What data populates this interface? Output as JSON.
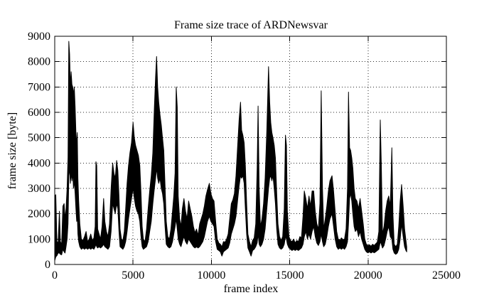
{
  "window": {
    "background": "#ffffff"
  },
  "chart_data": {
    "type": "line",
    "title": "Frame size trace of ARDNewsvar",
    "xlabel": "frame index",
    "ylabel": "frame size [byte]",
    "xlim": [
      0,
      25000
    ],
    "ylim": [
      0,
      9000
    ],
    "x_ticks": [
      0,
      5000,
      10000,
      15000,
      20000,
      25000
    ],
    "y_ticks": [
      0,
      1000,
      2000,
      3000,
      4000,
      5000,
      6000,
      7000,
      8000,
      9000
    ],
    "grid": "dotted",
    "legend": "none",
    "line_color": "#000000",
    "grid_color": "#2a2a2a",
    "border_color": "#000000",
    "series_name": "frame size trace of ARDNewsvar",
    "envelope_format": "[frame_index, min_frame_size_byte, max_frame_size_byte]",
    "envelope": [
      [
        0,
        150,
        2700
      ],
      [
        70,
        300,
        2750
      ],
      [
        140,
        350,
        900
      ],
      [
        220,
        450,
        850
      ],
      [
        300,
        450,
        2100
      ],
      [
        360,
        400,
        900
      ],
      [
        440,
        380,
        800
      ],
      [
        520,
        600,
        2300
      ],
      [
        600,
        500,
        2400
      ],
      [
        660,
        450,
        1800
      ],
      [
        720,
        700,
        2200
      ],
      [
        790,
        1000,
        3000
      ],
      [
        850,
        1600,
        4200
      ],
      [
        900,
        3500,
        8800
      ],
      [
        950,
        3800,
        8300
      ],
      [
        1000,
        3200,
        7000
      ],
      [
        1050,
        3600,
        7600
      ],
      [
        1100,
        3300,
        7100
      ],
      [
        1150,
        3600,
        7000
      ],
      [
        1200,
        3000,
        6700
      ],
      [
        1250,
        3300,
        7000
      ],
      [
        1300,
        2800,
        6200
      ],
      [
        1350,
        2200,
        5200
      ],
      [
        1400,
        1700,
        4700
      ],
      [
        1440,
        2000,
        5200
      ],
      [
        1480,
        1200,
        3400
      ],
      [
        1530,
        900,
        2500
      ],
      [
        1600,
        700,
        1600
      ],
      [
        1700,
        600,
        1000
      ],
      [
        1800,
        650,
        950
      ],
      [
        1900,
        600,
        1100
      ],
      [
        2000,
        650,
        1300
      ],
      [
        2100,
        600,
        900
      ],
      [
        2200,
        650,
        1000
      ],
      [
        2300,
        600,
        1200
      ],
      [
        2400,
        650,
        950
      ],
      [
        2500,
        600,
        1050
      ],
      [
        2580,
        700,
        1500
      ],
      [
        2630,
        800,
        4050
      ],
      [
        2680,
        700,
        3900
      ],
      [
        2740,
        650,
        1400
      ],
      [
        2830,
        700,
        1200
      ],
      [
        2920,
        650,
        1000
      ],
      [
        3020,
        700,
        1500
      ],
      [
        3120,
        800,
        2600
      ],
      [
        3200,
        700,
        1700
      ],
      [
        3300,
        650,
        1300
      ],
      [
        3400,
        600,
        1100
      ],
      [
        3500,
        700,
        1600
      ],
      [
        3600,
        1300,
        3000
      ],
      [
        3700,
        2400,
        4000
      ],
      [
        3780,
        2200,
        3600
      ],
      [
        3860,
        2000,
        3400
      ],
      [
        3950,
        2400,
        4100
      ],
      [
        4030,
        2200,
        3700
      ],
      [
        4100,
        1300,
        2700
      ],
      [
        4170,
        700,
        1400
      ],
      [
        4260,
        650,
        1000
      ],
      [
        4350,
        600,
        950
      ],
      [
        4440,
        700,
        1300
      ],
      [
        4530,
        900,
        2200
      ],
      [
        4620,
        1300,
        3200
      ],
      [
        4710,
        1800,
        3900
      ],
      [
        4800,
        2200,
        4400
      ],
      [
        4900,
        2600,
        4800
      ],
      [
        5000,
        3000,
        5600
      ],
      [
        5080,
        2600,
        5000
      ],
      [
        5160,
        2300,
        4700
      ],
      [
        5250,
        2100,
        4500
      ],
      [
        5340,
        2000,
        4300
      ],
      [
        5430,
        1700,
        3900
      ],
      [
        5510,
        1100,
        2800
      ],
      [
        5580,
        700,
        1500
      ],
      [
        5660,
        600,
        1000
      ],
      [
        5760,
        650,
        900
      ],
      [
        5860,
        700,
        1400
      ],
      [
        5960,
        900,
        2200
      ],
      [
        6060,
        1300,
        2900
      ],
      [
        6160,
        1700,
        3500
      ],
      [
        6260,
        2400,
        4400
      ],
      [
        6360,
        3000,
        6200
      ],
      [
        6440,
        3400,
        7400
      ],
      [
        6500,
        3800,
        8200
      ],
      [
        6570,
        3400,
        7000
      ],
      [
        6640,
        3200,
        6400
      ],
      [
        6720,
        3400,
        5900
      ],
      [
        6800,
        3000,
        5500
      ],
      [
        6880,
        2800,
        5000
      ],
      [
        6960,
        2400,
        4500
      ],
      [
        7040,
        1500,
        3100
      ],
      [
        7120,
        800,
        1700
      ],
      [
        7220,
        700,
        1100
      ],
      [
        7320,
        650,
        1000
      ],
      [
        7420,
        700,
        1400
      ],
      [
        7520,
        900,
        2100
      ],
      [
        7600,
        1200,
        2700
      ],
      [
        7680,
        1500,
        3600
      ],
      [
        7755,
        1800,
        7000
      ],
      [
        7820,
        1400,
        6200
      ],
      [
        7880,
        1000,
        2700
      ],
      [
        7970,
        800,
        1800
      ],
      [
        8060,
        700,
        1500
      ],
      [
        8150,
        900,
        2200
      ],
      [
        8250,
        1100,
        2600
      ],
      [
        8350,
        900,
        2100
      ],
      [
        8450,
        800,
        1800
      ],
      [
        8550,
        1000,
        2500
      ],
      [
        8650,
        900,
        2200
      ],
      [
        8750,
        800,
        1900
      ],
      [
        8850,
        700,
        1500
      ],
      [
        8950,
        650,
        1250
      ],
      [
        9050,
        700,
        1400
      ],
      [
        9150,
        650,
        1150
      ],
      [
        9250,
        700,
        1600
      ],
      [
        9350,
        800,
        1800
      ],
      [
        9450,
        900,
        2000
      ],
      [
        9550,
        1100,
        2300
      ],
      [
        9650,
        1400,
        2700
      ],
      [
        9750,
        1700,
        2950
      ],
      [
        9870,
        1900,
        3200
      ],
      [
        9970,
        1700,
        2800
      ],
      [
        10070,
        1600,
        2600
      ],
      [
        10170,
        1500,
        2500
      ],
      [
        10270,
        900,
        1700
      ],
      [
        10370,
        600,
        1000
      ],
      [
        10470,
        550,
        850
      ],
      [
        10570,
        500,
        800
      ],
      [
        10670,
        330,
        700
      ],
      [
        10770,
        500,
        900
      ],
      [
        10870,
        550,
        880
      ],
      [
        10970,
        600,
        1000
      ],
      [
        11070,
        650,
        1200
      ],
      [
        11170,
        850,
        1800
      ],
      [
        11270,
        1200,
        2400
      ],
      [
        11370,
        1400,
        2550
      ],
      [
        11470,
        1600,
        2800
      ],
      [
        11570,
        1900,
        3500
      ],
      [
        11670,
        2500,
        4600
      ],
      [
        11770,
        3100,
        5700
      ],
      [
        11860,
        3500,
        6400
      ],
      [
        11930,
        3400,
        5300
      ],
      [
        12010,
        3500,
        5100
      ],
      [
        12090,
        3200,
        4800
      ],
      [
        12170,
        2200,
        3900
      ],
      [
        12250,
        1200,
        2400
      ],
      [
        12330,
        650,
        1200
      ],
      [
        12430,
        500,
        900
      ],
      [
        12530,
        330,
        700
      ],
      [
        12630,
        550,
        950
      ],
      [
        12730,
        600,
        1050
      ],
      [
        12830,
        700,
        1600
      ],
      [
        12920,
        850,
        3800
      ],
      [
        12980,
        1200,
        6250
      ],
      [
        13050,
        800,
        3000
      ],
      [
        13130,
        700,
        1500
      ],
      [
        13230,
        800,
        1800
      ],
      [
        13330,
        1000,
        2400
      ],
      [
        13430,
        1400,
        3400
      ],
      [
        13540,
        2200,
        5300
      ],
      [
        13650,
        3000,
        7800
      ],
      [
        13720,
        3400,
        6400
      ],
      [
        13790,
        3500,
        5600
      ],
      [
        13860,
        3300,
        5200
      ],
      [
        13930,
        3500,
        5000
      ],
      [
        14010,
        3000,
        4700
      ],
      [
        14090,
        2400,
        4200
      ],
      [
        14170,
        1400,
        2800
      ],
      [
        14250,
        800,
        1600
      ],
      [
        14350,
        650,
        1100
      ],
      [
        14450,
        600,
        950
      ],
      [
        14550,
        650,
        1100
      ],
      [
        14650,
        800,
        2200
      ],
      [
        14730,
        1100,
        5100
      ],
      [
        14790,
        1000,
        4700
      ],
      [
        14850,
        800,
        2100
      ],
      [
        14950,
        650,
        1100
      ],
      [
        15050,
        600,
        950
      ],
      [
        15150,
        550,
        900
      ],
      [
        15250,
        600,
        1000
      ],
      [
        15350,
        550,
        850
      ],
      [
        15450,
        600,
        950
      ],
      [
        15550,
        550,
        900
      ],
      [
        15650,
        600,
        1100
      ],
      [
        15750,
        650,
        1050
      ],
      [
        15850,
        800,
        1900
      ],
      [
        15930,
        1100,
        2900
      ],
      [
        16030,
        1300,
        2600
      ],
      [
        16130,
        1000,
        2200
      ],
      [
        16230,
        1200,
        2700
      ],
      [
        16330,
        1000,
        2300
      ],
      [
        16430,
        1300,
        2900
      ],
      [
        16530,
        1500,
        2900
      ],
      [
        16630,
        1100,
        2100
      ],
      [
        16730,
        850,
        1600
      ],
      [
        16830,
        750,
        1400
      ],
      [
        16930,
        900,
        2400
      ],
      [
        17010,
        1200,
        6850
      ],
      [
        17090,
        900,
        3000
      ],
      [
        17170,
        700,
        1400
      ],
      [
        17270,
        800,
        1800
      ],
      [
        17370,
        1100,
        2300
      ],
      [
        17470,
        1500,
        2900
      ],
      [
        17570,
        1800,
        3300
      ],
      [
        17700,
        2000,
        3500
      ],
      [
        17800,
        1500,
        2900
      ],
      [
        17900,
        1000,
        2100
      ],
      [
        18000,
        700,
        1300
      ],
      [
        18100,
        600,
        1000
      ],
      [
        18200,
        650,
        950
      ],
      [
        18300,
        600,
        1050
      ],
      [
        18400,
        650,
        980
      ],
      [
        18500,
        600,
        1000
      ],
      [
        18600,
        700,
        1400
      ],
      [
        18690,
        900,
        3000
      ],
      [
        18750,
        1600,
        6800
      ],
      [
        18820,
        2600,
        4600
      ],
      [
        18890,
        2800,
        4500
      ],
      [
        18960,
        2500,
        4200
      ],
      [
        19030,
        2000,
        3800
      ],
      [
        19110,
        1500,
        3000
      ],
      [
        19190,
        1300,
        2600
      ],
      [
        19290,
        1400,
        2500
      ],
      [
        19390,
        1100,
        2200
      ],
      [
        19490,
        1300,
        2600
      ],
      [
        19590,
        1000,
        2100
      ],
      [
        19690,
        800,
        1600
      ],
      [
        19790,
        600,
        1000
      ],
      [
        19890,
        500,
        800
      ],
      [
        19990,
        460,
        750
      ],
      [
        20090,
        500,
        780
      ],
      [
        20190,
        450,
        720
      ],
      [
        20290,
        500,
        800
      ],
      [
        20390,
        460,
        750
      ],
      [
        20490,
        500,
        820
      ],
      [
        20590,
        550,
        880
      ],
      [
        20690,
        600,
        1300
      ],
      [
        20780,
        900,
        5700
      ],
      [
        20850,
        800,
        3900
      ],
      [
        20920,
        650,
        1200
      ],
      [
        21020,
        750,
        1500
      ],
      [
        21120,
        1000,
        2100
      ],
      [
        21220,
        1300,
        2500
      ],
      [
        21320,
        1500,
        2700
      ],
      [
        21420,
        1100,
        2300
      ],
      [
        21520,
        1000,
        4600
      ],
      [
        21590,
        600,
        2000
      ],
      [
        21670,
        450,
        800
      ],
      [
        21770,
        400,
        700
      ],
      [
        21870,
        450,
        800
      ],
      [
        21960,
        600,
        1500
      ],
      [
        22050,
        1000,
        2500
      ],
      [
        22140,
        1600,
        3150
      ],
      [
        22240,
        1100,
        2300
      ],
      [
        22330,
        700,
        1400
      ],
      [
        22420,
        550,
        950
      ],
      [
        22470,
        500,
        700
      ]
    ]
  }
}
